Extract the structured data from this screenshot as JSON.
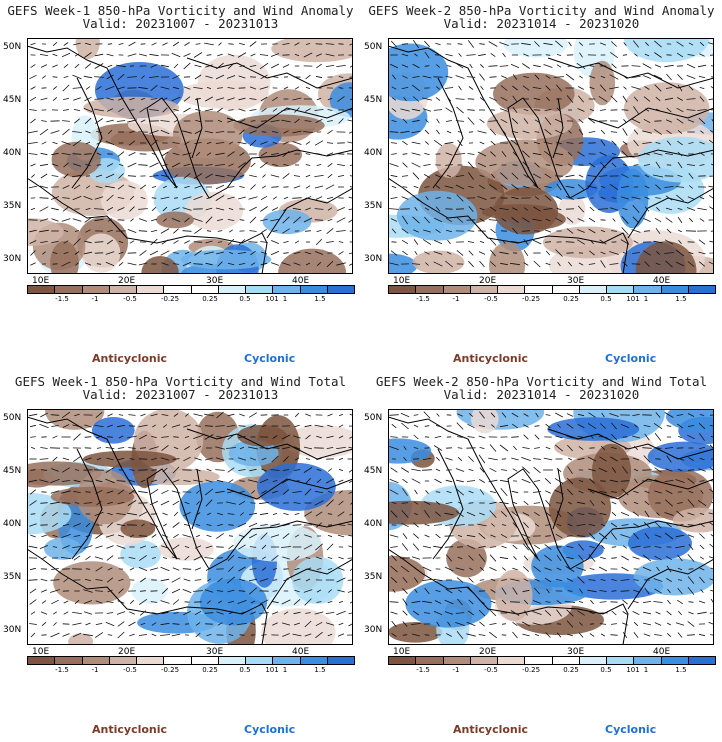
{
  "panels": [
    {
      "title": "GEFS Week-1 850-hPa Vorticity and Wind Anomaly",
      "valid": "Valid: 20231007 - 20231013"
    },
    {
      "title": "GEFS Week-2 850-hPa Vorticity and Wind Anomaly",
      "valid": "Valid: 20231014 - 20231020"
    },
    {
      "title": "GEFS Week-1 850-hPa Vorticity and Wind Total",
      "valid": "Valid: 20231007 - 20231013"
    },
    {
      "title": "GEFS Week-2 850-hPa Vorticity and Wind Total",
      "valid": "Valid: 20231014 - 20231020"
    }
  ],
  "lat_labels": [
    "50N",
    "45N",
    "40N",
    "35N",
    "30N"
  ],
  "lon_labels": [
    "10E",
    "20E",
    "30E",
    "40E"
  ],
  "colorbar": {
    "colors": [
      "#7d5540",
      "#96705c",
      "#b08d7b",
      "#cfb3a6",
      "#ebdbd3",
      "#ffffff",
      "#ffffff",
      "#d8f1fb",
      "#a9dcf4",
      "#6fb3ea",
      "#3b8ddf",
      "#2a6fd6"
    ],
    "labels": [
      "-1.5",
      "-1",
      "-0.5",
      "-0.25",
      "0.25",
      "0.5",
      "1",
      "1.5"
    ],
    "label_suffix": "101"
  },
  "legend": {
    "anticyclonic": "Anticyclonic",
    "cyclonic": "Cyclonic",
    "anticyclonic_color": "#7b3b28",
    "cyclonic_color": "#1f6fd6"
  }
}
